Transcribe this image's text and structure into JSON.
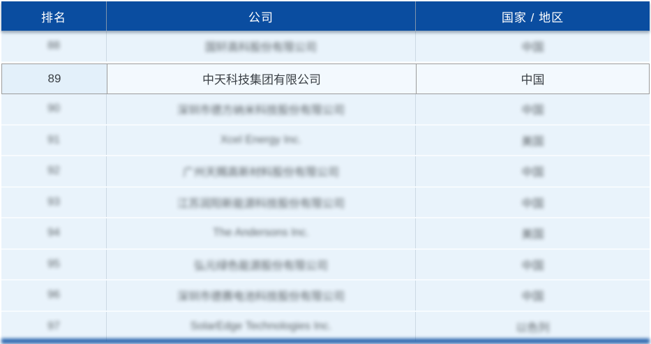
{
  "table": {
    "columns": [
      {
        "key": "rank",
        "label": "排名"
      },
      {
        "key": "company",
        "label": "公司"
      },
      {
        "key": "country",
        "label": "国家 / 地区"
      }
    ],
    "rows": [
      {
        "rank": "88",
        "company": "国轩高科股份有限公司",
        "country": "中国",
        "blurred": true,
        "highlighted": false
      },
      {
        "rank": "89",
        "company": "中天科技集团有限公司",
        "country": "中国",
        "blurred": false,
        "highlighted": true
      },
      {
        "rank": "90",
        "company": "深圳市德方纳米科技股份有限公司",
        "country": "中国",
        "blurred": true,
        "highlighted": false
      },
      {
        "rank": "91",
        "company": "Xcel Energy Inc.",
        "country": "美国",
        "blurred": true,
        "highlighted": false
      },
      {
        "rank": "92",
        "company": "广州天赐高新材料股份有限公司",
        "country": "中国",
        "blurred": true,
        "highlighted": false
      },
      {
        "rank": "93",
        "company": "江苏润阳新能源科技股份有限公司",
        "country": "中国",
        "blurred": true,
        "highlighted": false
      },
      {
        "rank": "94",
        "company": "The Andersons Inc.",
        "country": "美国",
        "blurred": true,
        "highlighted": false
      },
      {
        "rank": "95",
        "company": "弘元绿色能源股份有限公司",
        "country": "中国",
        "blurred": true,
        "highlighted": false
      },
      {
        "rank": "96",
        "company": "深圳市德赛电池科技股份有限公司",
        "country": "中国",
        "blurred": true,
        "highlighted": false
      },
      {
        "rank": "97",
        "company": "SolarEdge Technologies Inc.",
        "country": "以色列",
        "blurred": true,
        "highlighted": false
      }
    ]
  },
  "colors": {
    "header_bg": "#0a4da0",
    "header_text": "#ffffff",
    "row_bg": "#e9f3fb",
    "highlight_row_bg": "#f3f9fe",
    "highlight_border": "#9b9b9b",
    "body_text": "#43484d"
  }
}
